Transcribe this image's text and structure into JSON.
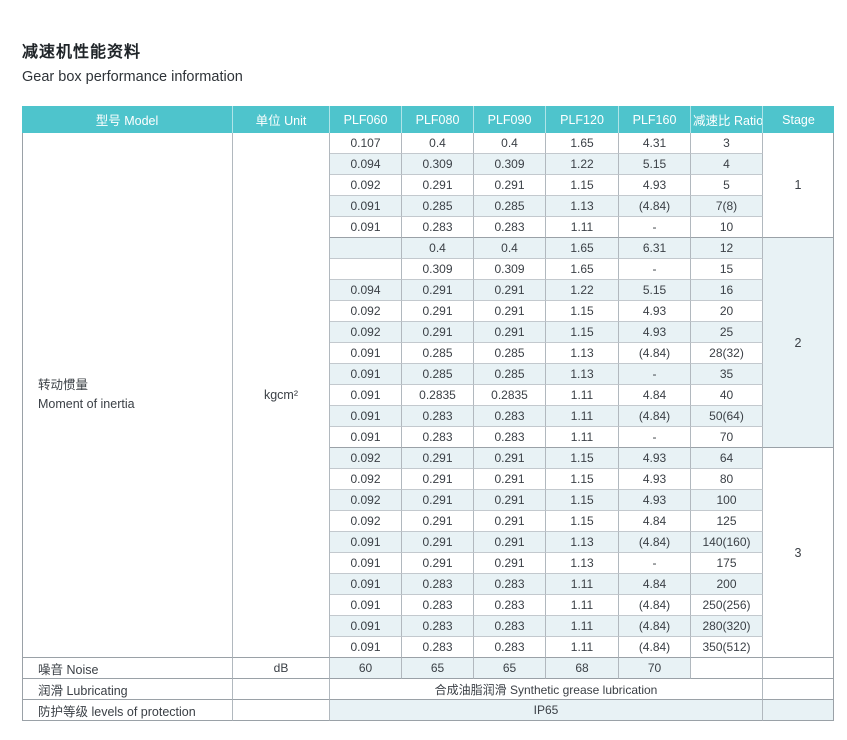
{
  "header": {
    "title_zh": "减速机性能资料",
    "title_en": "Gear box performance information"
  },
  "colors": {
    "header_bg": "#4EC4CC",
    "header_text": "#FFFFFF",
    "stripe_bg": "#E8F2F5",
    "grid_line": "#B1B8BE",
    "grid_line_dark": "#9AA1A7",
    "text": "#3B4046"
  },
  "table": {
    "columns": [
      "型号 Model",
      "单位 Unit",
      "PLF060",
      "PLF080",
      "PLF090",
      "PLF120",
      "PLF160",
      "减速比 Ratio",
      "Stage"
    ],
    "inertia_label_zh": "转动惯量",
    "inertia_label_en": "Moment of inertia",
    "inertia_unit": "kgcm²",
    "stages": [
      {
        "label": "1",
        "rows": [
          [
            "0.107",
            "0.4",
            "0.4",
            "1.65",
            "4.31",
            "3"
          ],
          [
            "0.094",
            "0.309",
            "0.309",
            "1.22",
            "5.15",
            "4"
          ],
          [
            "0.092",
            "0.291",
            "0.291",
            "1.15",
            "4.93",
            "5"
          ],
          [
            "0.091",
            "0.285",
            "0.285",
            "1.13",
            "(4.84)",
            "7(8)"
          ],
          [
            "0.091",
            "0.283",
            "0.283",
            "1.11",
            "-",
            "10"
          ]
        ]
      },
      {
        "label": "2",
        "rows": [
          [
            "",
            "0.4",
            "0.4",
            "1.65",
            "6.31",
            "12"
          ],
          [
            "",
            "0.309",
            "0.309",
            "1.65",
            "-",
            "15"
          ],
          [
            "0.094",
            "0.291",
            "0.291",
            "1.22",
            "5.15",
            "16"
          ],
          [
            "0.092",
            "0.291",
            "0.291",
            "1.15",
            "4.93",
            "20"
          ],
          [
            "0.092",
            "0.291",
            "0.291",
            "1.15",
            "4.93",
            "25"
          ],
          [
            "0.091",
            "0.285",
            "0.285",
            "1.13",
            "(4.84)",
            "28(32)"
          ],
          [
            "0.091",
            "0.285",
            "0.285",
            "1.13",
            "-",
            "35"
          ],
          [
            "0.091",
            "0.2835",
            "0.2835",
            "1.11",
            "4.84",
            "40"
          ],
          [
            "0.091",
            "0.283",
            "0.283",
            "1.11",
            "(4.84)",
            "50(64)"
          ],
          [
            "0.091",
            "0.283",
            "0.283",
            "1.11",
            "-",
            "70"
          ]
        ]
      },
      {
        "label": "3",
        "rows": [
          [
            "0.092",
            "0.291",
            "0.291",
            "1.15",
            "4.93",
            "64"
          ],
          [
            "0.092",
            "0.291",
            "0.291",
            "1.15",
            "4.93",
            "80"
          ],
          [
            "0.092",
            "0.291",
            "0.291",
            "1.15",
            "4.93",
            "100"
          ],
          [
            "0.092",
            "0.291",
            "0.291",
            "1.15",
            "4.84",
            "125"
          ],
          [
            "0.091",
            "0.291",
            "0.291",
            "1.13",
            "(4.84)",
            "140(160)"
          ],
          [
            "0.091",
            "0.291",
            "0.291",
            "1.13",
            "-",
            "175"
          ],
          [
            "0.091",
            "0.283",
            "0.283",
            "1.11",
            "4.84",
            "200"
          ],
          [
            "0.091",
            "0.283",
            "0.283",
            "1.11",
            "(4.84)",
            "250(256)"
          ],
          [
            "0.091",
            "0.283",
            "0.283",
            "1.11",
            "(4.84)",
            "280(320)"
          ],
          [
            "0.091",
            "0.283",
            "0.283",
            "1.11",
            "(4.84)",
            "350(512)"
          ]
        ]
      }
    ],
    "noise": {
      "label": "噪音 Noise",
      "unit": "dB",
      "values": [
        "60",
        "65",
        "65",
        "68",
        "70"
      ]
    },
    "lubricating": {
      "label": "润滑 Lubricating",
      "value": "合成油脂润滑 Synthetic grease lubrication"
    },
    "protection": {
      "label": "防护等级 levels of protection",
      "value": "IP65"
    }
  }
}
